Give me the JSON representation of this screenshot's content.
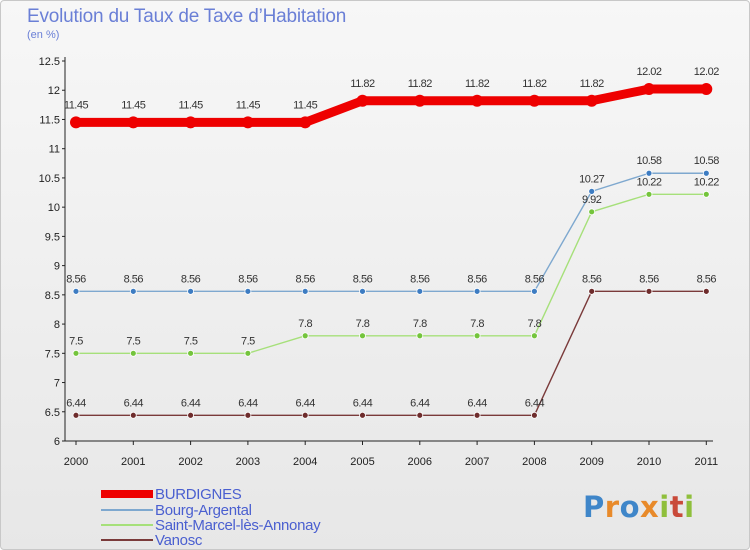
{
  "header": {
    "title": "Evolution du Taux de Taxe d’Habitation",
    "subtitle": "(en %)"
  },
  "chart_data": {
    "type": "line",
    "title": "Evolution du Taux de Taxe d’Habitation",
    "subtitle": "(en %)",
    "xlabel": "",
    "ylabel": "",
    "x": [
      "2000",
      "2001",
      "2002",
      "2003",
      "2004",
      "2005",
      "2006",
      "2007",
      "2008",
      "2009",
      "2010",
      "2011"
    ],
    "ylim": [
      6,
      12.5
    ],
    "yticks": [
      "6",
      "6.5",
      "7",
      "7.5",
      "8",
      "8.5",
      "9",
      "9.5",
      "10",
      "10.5",
      "11",
      "11.5",
      "12",
      "12.5"
    ],
    "grid": false,
    "legend": "bottom-left",
    "series": [
      {
        "name": "BURDIGNES",
        "color": "#ee0000",
        "values": [
          11.45,
          11.45,
          11.45,
          11.45,
          11.45,
          11.82,
          11.82,
          11.82,
          11.82,
          11.82,
          12.02,
          12.02
        ],
        "labels": [
          "11.45",
          "11.45",
          "11.45",
          "11.45",
          "11.45",
          "11.82",
          "11.82",
          "11.82",
          "11.82",
          "11.82",
          "12.02",
          "12.02"
        ]
      },
      {
        "name": "Bourg-Argental",
        "color": "#7ea8cf",
        "marker_color": "#3d7cc2",
        "values": [
          8.56,
          8.56,
          8.56,
          8.56,
          8.56,
          8.56,
          8.56,
          8.56,
          8.56,
          10.27,
          10.58,
          10.58
        ],
        "labels": [
          "8.56",
          "8.56",
          "8.56",
          "8.56",
          "8.56",
          "8.56",
          "8.56",
          "8.56",
          "8.56",
          "10.27",
          "10.58",
          "10.58"
        ]
      },
      {
        "name": "Saint-Marcel-lès-Annonay",
        "color": "#a6e07a",
        "marker_color": "#74c43c",
        "values": [
          7.5,
          7.5,
          7.5,
          7.5,
          7.8,
          7.8,
          7.8,
          7.8,
          7.8,
          9.92,
          10.22,
          10.22
        ],
        "labels": [
          "7.5",
          "7.5",
          "7.5",
          "7.5",
          "7.8",
          "7.8",
          "7.8",
          "7.8",
          "7.8",
          "9.92",
          "10.22",
          "10.22"
        ]
      },
      {
        "name": "Vanosc",
        "color": "#7a3a3a",
        "marker_color": "#6e2c2c",
        "values": [
          6.44,
          6.44,
          6.44,
          6.44,
          6.44,
          6.44,
          6.44,
          6.44,
          6.44,
          8.56,
          8.56,
          8.56
        ],
        "labels": [
          "6.44",
          "6.44",
          "6.44",
          "6.44",
          "6.44",
          "6.44",
          "6.44",
          "6.44",
          "6.44",
          "8.56",
          "8.56",
          "8.56"
        ]
      }
    ]
  },
  "legend": {
    "items": [
      {
        "label": "BURDIGNES",
        "color": "#ee0000"
      },
      {
        "label": "Bourg-Argental",
        "color": "#7ea8cf"
      },
      {
        "label": "Saint-Marcel-lès-Annonay",
        "color": "#a6e07a"
      },
      {
        "label": "Vanosc",
        "color": "#7a3a3a"
      }
    ]
  },
  "logo": {
    "text": "Proxiti",
    "colors": [
      "#3f86c9",
      "#e88a2a",
      "#8fbf3c",
      "#c94a3a"
    ]
  }
}
